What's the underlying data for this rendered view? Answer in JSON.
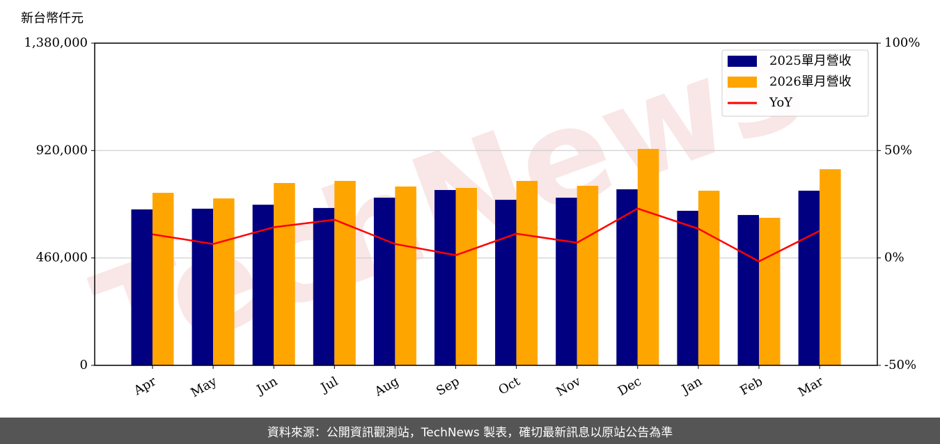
{
  "chart_data": {
    "type": "bar",
    "y_label": "新台幣仟元",
    "watermark": "TechNews",
    "categories": [
      "Apr",
      "May",
      "Jun",
      "Jul",
      "Aug",
      "Sep",
      "Oct",
      "Nov",
      "Dec",
      "Jan",
      "Feb",
      "Mar"
    ],
    "series": [
      {
        "name": "2025單月營收",
        "color": "#000080",
        "type": "bar",
        "values": [
          668000,
          671000,
          688000,
          674000,
          718000,
          751000,
          709000,
          718000,
          754000,
          662000,
          644000,
          748000
        ]
      },
      {
        "name": "2026單月營收",
        "color": "#ffa500",
        "type": "bar",
        "values": [
          739000,
          715000,
          781000,
          790000,
          766000,
          760000,
          790000,
          769000,
          927000,
          748000,
          632000,
          840000
        ]
      },
      {
        "name": "YoY",
        "color": "#ff0000",
        "type": "line",
        "axis": "y2",
        "values": [
          11.0,
          6.5,
          14.3,
          17.8,
          6.5,
          1.3,
          11.3,
          7.1,
          23.0,
          13.6,
          -1.6,
          12.6
        ]
      }
    ],
    "ylim": [
      0,
      1380000
    ],
    "yticks": [
      {
        "value": 0,
        "label": "0"
      },
      {
        "value": 460000,
        "label": "460,000"
      },
      {
        "value": 920000,
        "label": "920,000"
      },
      {
        "value": 1380000,
        "label": "1,380,000"
      }
    ],
    "y2lim": [
      -50,
      100
    ],
    "y2ticks": [
      {
        "value": -50,
        "label": "-50%"
      },
      {
        "value": 0,
        "label": "0%"
      },
      {
        "value": 50,
        "label": "50%"
      },
      {
        "value": 100,
        "label": "100%"
      }
    ],
    "grid": true,
    "legend": "upper right"
  },
  "footer": "資料來源：公開資訊觀測站，TechNews 製表，確切最新訊息以原站公告為準"
}
